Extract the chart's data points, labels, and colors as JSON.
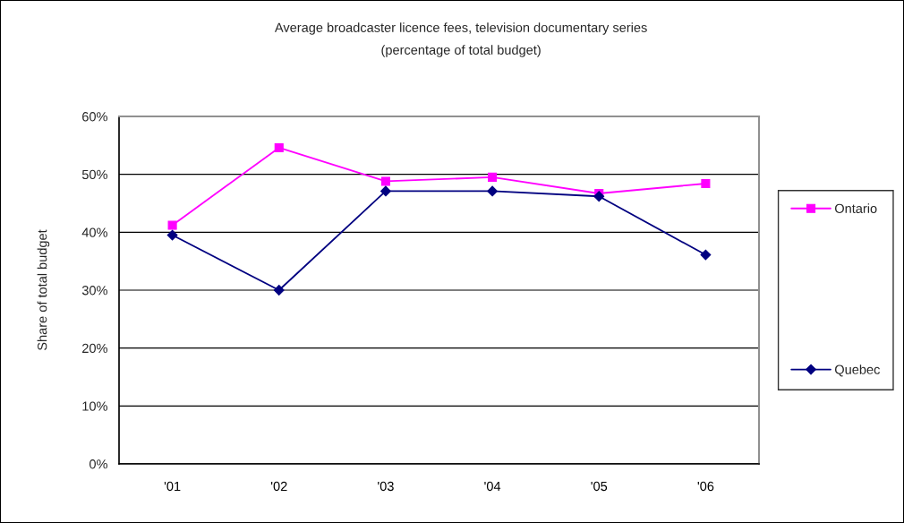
{
  "chart_data": {
    "type": "line",
    "title": "Average broadcaster licence fees, television documentary series",
    "subtitle": "(percentage of total budget)",
    "ylabel": "Share of total budget",
    "categories": [
      "'01",
      "'02",
      "'03",
      "'04",
      "'05",
      "'06"
    ],
    "series": [
      {
        "name": "Ontario",
        "color": "#ff00ff",
        "marker": "square",
        "values": [
          41.2,
          54.6,
          48.8,
          49.5,
          46.7,
          48.4
        ]
      },
      {
        "name": "Quebec",
        "color": "#000080",
        "marker": "diamond",
        "values": [
          39.5,
          30.0,
          47.1,
          47.1,
          46.2,
          36.1
        ]
      }
    ],
    "ylim": [
      0,
      60
    ],
    "yticks": [
      {
        "value": 0,
        "label": "0%"
      },
      {
        "value": 10,
        "label": "10%"
      },
      {
        "value": 20,
        "label": "20%"
      },
      {
        "value": 30,
        "label": "30%"
      },
      {
        "value": 40,
        "label": "40%"
      },
      {
        "value": 50,
        "label": "50%"
      },
      {
        "value": 60,
        "label": "60%"
      }
    ],
    "grid": "y",
    "legend": "right",
    "line_style": "solid"
  }
}
